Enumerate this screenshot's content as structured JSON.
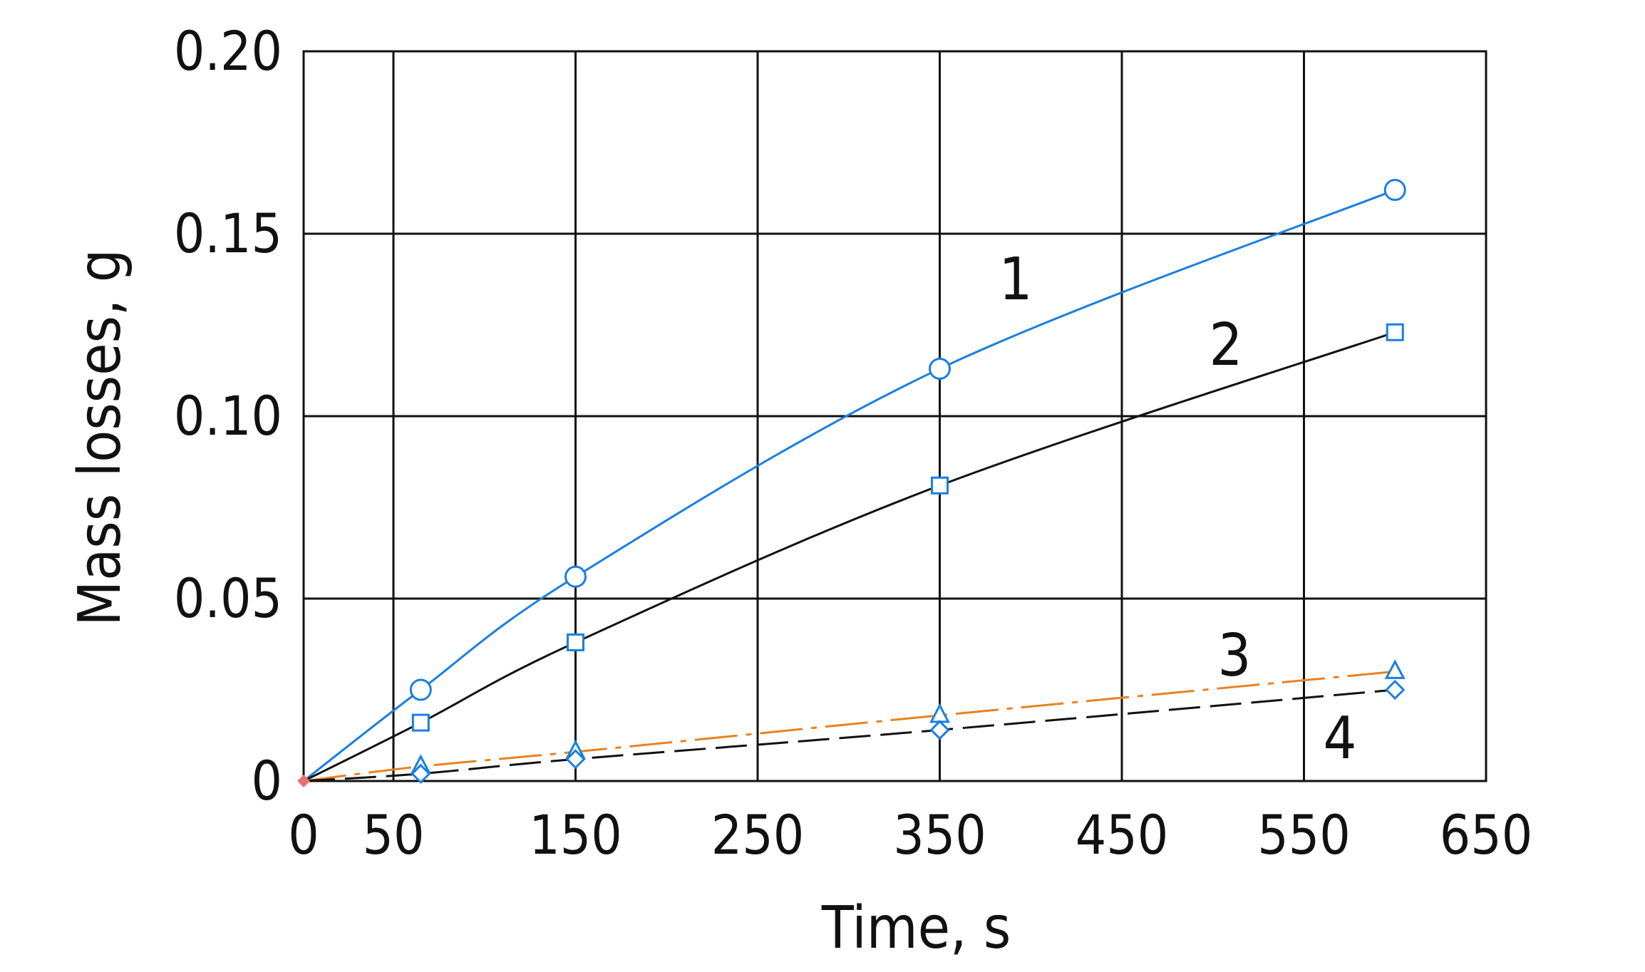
{
  "chart_data": {
    "type": "line",
    "title": "",
    "xlabel": "Time, s",
    "ylabel": "Mass losses, g",
    "xlim": [
      0,
      650
    ],
    "ylim": [
      0,
      0.2
    ],
    "x_ticks": [
      0,
      50,
      150,
      250,
      350,
      450,
      550,
      650
    ],
    "x_tick_labels": [
      "0",
      "50",
      "150",
      "250",
      "350",
      "450",
      "550",
      "650"
    ],
    "y_ticks": [
      0,
      0.05,
      0.1,
      0.15,
      0.2
    ],
    "y_tick_labels": [
      "0",
      "0.05",
      "0.10",
      "0.15",
      "0.20"
    ],
    "grid": true,
    "series": [
      {
        "label": "1",
        "color": "#1a7fe0",
        "line": "solid",
        "marker": "circle",
        "x": [
          0,
          65,
          150,
          350,
          600
        ],
        "y": [
          0,
          0.025,
          0.056,
          0.113,
          0.162
        ]
      },
      {
        "label": "2",
        "color": "#111111",
        "marker_color": "#1a7fe0",
        "line": "solid",
        "marker": "square",
        "x": [
          0,
          65,
          150,
          350,
          600
        ],
        "y": [
          0,
          0.016,
          0.038,
          0.081,
          0.123
        ]
      },
      {
        "label": "3",
        "color": "#e8821e",
        "marker_color": "#1a7fe0",
        "line": "dashdot",
        "marker": "triangle",
        "x": [
          0,
          65,
          150,
          350,
          600
        ],
        "y": [
          0,
          0.004,
          0.008,
          0.018,
          0.03
        ]
      },
      {
        "label": "4",
        "color": "#111111",
        "marker_color": "#1a7fe0",
        "line": "dashed",
        "marker": "diamond",
        "x": [
          0,
          65,
          150,
          350,
          600
        ],
        "y": [
          0,
          0.002,
          0.006,
          0.014,
          0.025
        ]
      }
    ],
    "origin_marker_color": "#e87070"
  }
}
